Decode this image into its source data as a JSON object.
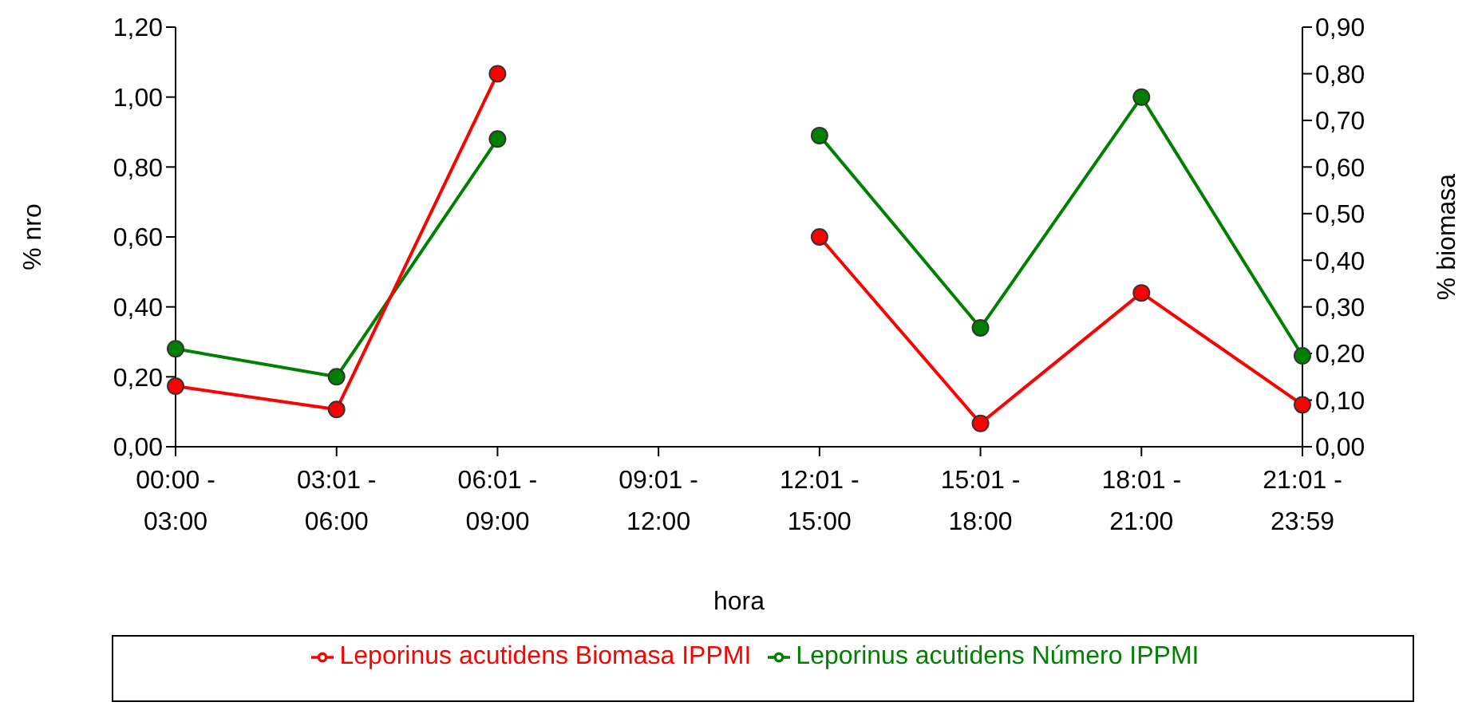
{
  "chart_data": {
    "type": "line",
    "xlabel": "hora",
    "ylabel": "% nro",
    "y2label": "% biomasa",
    "categories": [
      "00:00 - 03:00",
      "03:01 - 06:00",
      "06:01 - 09:00",
      "09:01 - 12:00",
      "12:01 - 15:00",
      "15:01 - 18:00",
      "18:01 - 21:00",
      "21:01 - 23:59"
    ],
    "series": [
      {
        "name": "Leporinus acutidens Número IPPMI",
        "color": "#008000",
        "values": [
          0.28,
          0.2,
          0.88,
          null,
          0.89,
          0.34,
          1.0,
          0.26
        ]
      },
      {
        "name": "Leporinus acutidens Biomasa IPPMI",
        "color": "#ff0000",
        "axis": "y2",
        "values": [
          0.13,
          0.08,
          0.8,
          null,
          0.45,
          0.05,
          0.33,
          0.09
        ]
      }
    ],
    "ylim": [
      0,
      1.2
    ],
    "yticks": [
      {
        "value": 0,
        "label": "0,00"
      },
      {
        "value": 0.2,
        "label": "0,20"
      },
      {
        "value": 0.4,
        "label": "0,40"
      },
      {
        "value": 0.6,
        "label": "0,60"
      },
      {
        "value": 0.8,
        "label": "0,80"
      },
      {
        "value": 1.0,
        "label": "1,00"
      },
      {
        "value": 1.2,
        "label": "1,20"
      }
    ],
    "y2lim": [
      0,
      0.9
    ],
    "y2ticks": [
      {
        "value": 0,
        "label": "0,00"
      },
      {
        "value": 0.1,
        "label": "0,10"
      },
      {
        "value": 0.2,
        "label": "0,20"
      },
      {
        "value": 0.3,
        "label": "0,30"
      },
      {
        "value": 0.4,
        "label": "0,40"
      },
      {
        "value": 0.5,
        "label": "0,50"
      },
      {
        "value": 0.6,
        "label": "0,60"
      },
      {
        "value": 0.7,
        "label": "0,70"
      },
      {
        "value": 0.8,
        "label": "0,80"
      },
      {
        "value": 0.9,
        "label": "0,90"
      }
    ],
    "grid": false,
    "legend": "bottom",
    "marker": "circle",
    "line_style": "solid"
  }
}
